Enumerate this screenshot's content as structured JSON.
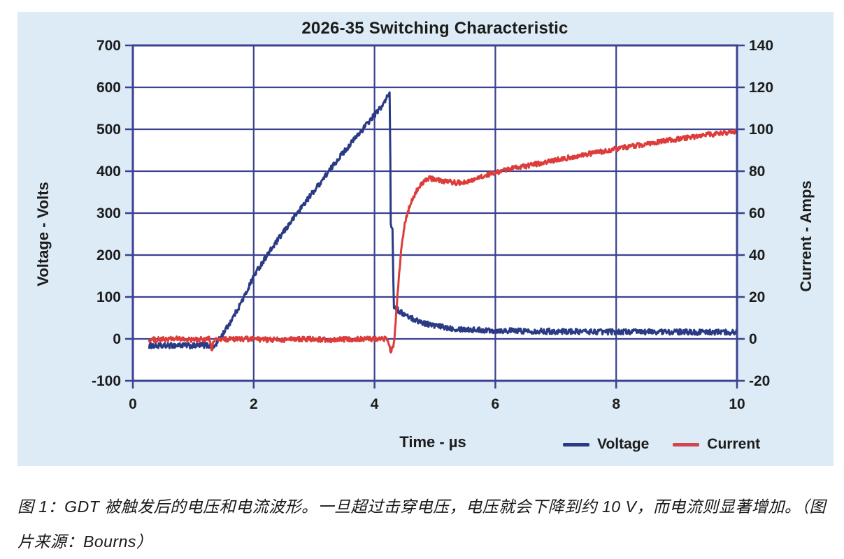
{
  "figure": {
    "caption": "图 1：GDT 被触发后的电压和电流波形。一旦超过击穿电压，电压就会下降到约 10 V，而电流则显著增加。（图片来源：Bourns）"
  },
  "colors": {
    "panel_bg": "#dcebf6",
    "plot_bg": "#ffffff",
    "grid": "#3c4191",
    "text": "#1c1c1c",
    "voltage": "#2a3a85",
    "current": "#dc3d3b",
    "current_legend": "#cf4750"
  },
  "chart_data": {
    "type": "line",
    "title": "2026-35 Switching Characteristic",
    "xlabel": "Time - µs",
    "ylabel_left": "Voltage - Volts",
    "ylabel_right": "Current - Amps",
    "xlim": [
      0,
      10
    ],
    "x_ticks": [
      0,
      2,
      4,
      6,
      8,
      10
    ],
    "ylim_left": [
      -100,
      700
    ],
    "y_ticks_left": [
      700,
      600,
      500,
      400,
      300,
      200,
      100,
      0,
      -100
    ],
    "ylim_right": [
      -20,
      140
    ],
    "y_ticks_right": [
      140,
      120,
      100,
      80,
      60,
      40,
      20,
      0,
      -20
    ],
    "grid": true,
    "legend_position": "bottom-right",
    "series": [
      {
        "name": "Voltage",
        "axis": "left",
        "color": "#2a3a85",
        "noise": 6.5,
        "points": [
          [
            0.27,
            -16
          ],
          [
            0.5,
            -17
          ],
          [
            0.75,
            -15
          ],
          [
            1.0,
            -17
          ],
          [
            1.15,
            -15
          ],
          [
            1.28,
            -16
          ],
          [
            1.33,
            -22
          ],
          [
            1.4,
            -8
          ],
          [
            1.48,
            10
          ],
          [
            1.58,
            32
          ],
          [
            1.7,
            62
          ],
          [
            1.85,
            102
          ],
          [
            2.0,
            150
          ],
          [
            2.2,
            195
          ],
          [
            2.5,
            256
          ],
          [
            2.8,
            316
          ],
          [
            3.1,
            372
          ],
          [
            3.4,
            430
          ],
          [
            3.7,
            482
          ],
          [
            4.0,
            534
          ],
          [
            4.15,
            560
          ],
          [
            4.25,
            588
          ],
          [
            4.262,
            430
          ],
          [
            4.268,
            278
          ],
          [
            4.298,
            262
          ],
          [
            4.31,
            148
          ],
          [
            4.322,
            78
          ],
          [
            4.35,
            74
          ],
          [
            4.42,
            65
          ],
          [
            4.52,
            56
          ],
          [
            4.65,
            47
          ],
          [
            4.82,
            38
          ],
          [
            5.0,
            31
          ],
          [
            5.3,
            25
          ],
          [
            5.6,
            22
          ],
          [
            6.0,
            20
          ],
          [
            6.5,
            19
          ],
          [
            7.0,
            18
          ],
          [
            7.8,
            17
          ],
          [
            8.6,
            17
          ],
          [
            9.3,
            16
          ],
          [
            10.0,
            16
          ]
        ]
      },
      {
        "name": "Current",
        "axis": "right",
        "color": "#dc3d3b",
        "noise": 1.2,
        "points": [
          [
            0.27,
            -0.5
          ],
          [
            0.7,
            0
          ],
          [
            1.0,
            -0.5
          ],
          [
            1.27,
            0
          ],
          [
            1.3,
            -6
          ],
          [
            1.34,
            -0.5
          ],
          [
            1.8,
            0
          ],
          [
            2.3,
            -0.5
          ],
          [
            2.8,
            0
          ],
          [
            3.3,
            -0.5
          ],
          [
            3.8,
            0
          ],
          [
            4.22,
            0
          ],
          [
            4.27,
            -6
          ],
          [
            4.31,
            -4
          ],
          [
            4.33,
            0
          ],
          [
            4.36,
            12
          ],
          [
            4.4,
            28
          ],
          [
            4.44,
            42
          ],
          [
            4.5,
            55
          ],
          [
            4.58,
            63
          ],
          [
            4.68,
            70
          ],
          [
            4.78,
            74
          ],
          [
            4.88,
            76.5
          ],
          [
            5.0,
            76.2
          ],
          [
            5.15,
            75.3
          ],
          [
            5.35,
            74.5
          ],
          [
            5.55,
            75.2
          ],
          [
            5.75,
            77
          ],
          [
            5.95,
            79
          ],
          [
            6.2,
            80.8
          ],
          [
            6.6,
            83
          ],
          [
            7.0,
            85.3
          ],
          [
            7.5,
            88
          ],
          [
            8.0,
            90.6
          ],
          [
            8.5,
            93
          ],
          [
            9.0,
            95.3
          ],
          [
            9.5,
            97.3
          ],
          [
            10.0,
            99
          ]
        ]
      }
    ]
  }
}
